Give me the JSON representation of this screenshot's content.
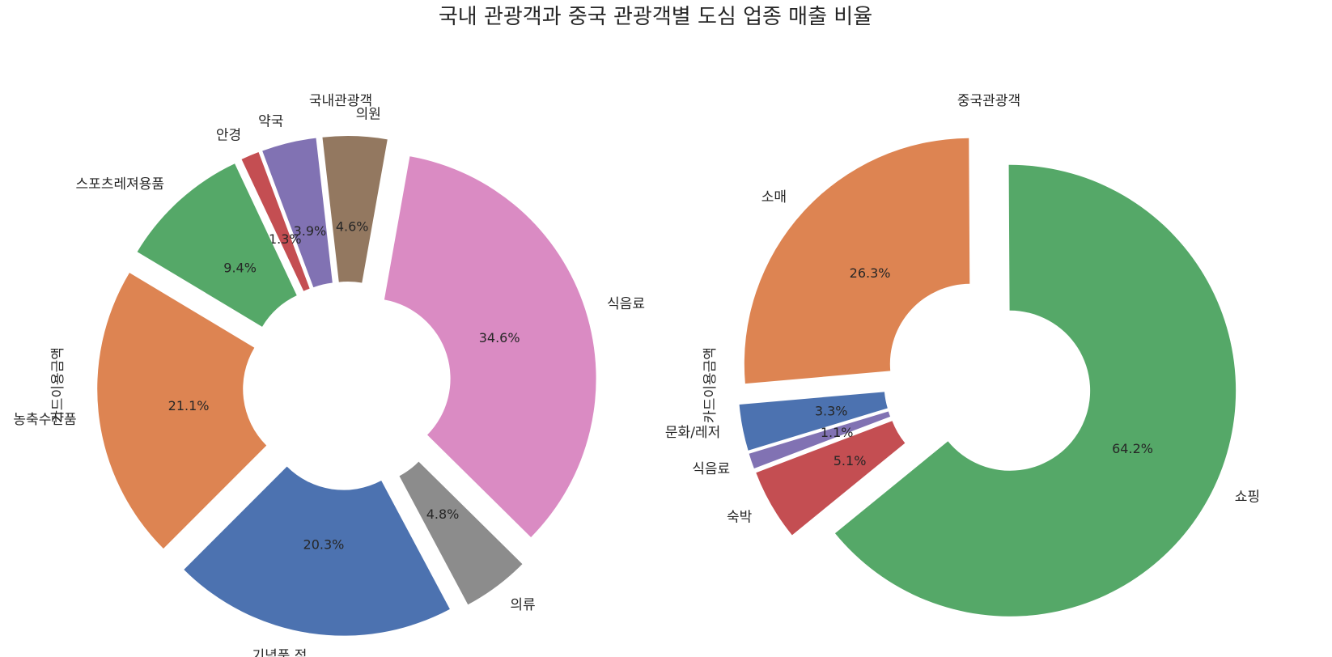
{
  "figure": {
    "title": "국내 관광객과 중국 관광객별 도심 업종 매출 비율"
  },
  "chart_data": [
    {
      "type": "pie",
      "title": "국내관광객",
      "ylabel": "카드이용금액",
      "donut": true,
      "start_angle_deg": 225,
      "direction": "counterclockwise",
      "slices": [
        {
          "label": "기념품 점",
          "value": 20.3,
          "pct_label": "20.3%",
          "color": "#4c72b0"
        },
        {
          "label": "의류",
          "value": 4.8,
          "pct_label": "4.8%",
          "color": "#8c8c8c"
        },
        {
          "label": "식음료",
          "value": 34.6,
          "pct_label": "34.6%",
          "color": "#da8bc3"
        },
        {
          "label": "의원",
          "value": 4.6,
          "pct_label": "4.6%",
          "color": "#937860"
        },
        {
          "label": "약국",
          "value": 3.9,
          "pct_label": "3.9%",
          "color": "#8172b3"
        },
        {
          "label": "안경",
          "value": 1.3,
          "pct_label": "1.3%",
          "color": "#c44e52"
        },
        {
          "label": "스포츠레져용품",
          "value": 9.4,
          "pct_label": "9.4%",
          "color": "#55a868"
        },
        {
          "label": "농축수산품",
          "value": 21.1,
          "pct_label": "21.1%",
          "color": "#dd8452"
        }
      ]
    },
    {
      "type": "pie",
      "title": "중국관광객",
      "ylabel": "카드이용금액",
      "donut": true,
      "start_angle_deg": 185,
      "direction": "counterclockwise",
      "slices": [
        {
          "label": "문화/레저",
          "value": 3.3,
          "pct_label": "3.3%",
          "color": "#4c72b0"
        },
        {
          "label": "식음료",
          "value": 1.1,
          "pct_label": "1.1%",
          "color": "#8172b3"
        },
        {
          "label": "숙박",
          "value": 5.1,
          "pct_label": "5.1%",
          "color": "#c44e52"
        },
        {
          "label": "쇼핑",
          "value": 64.2,
          "pct_label": "64.2%",
          "color": "#55a868"
        },
        {
          "label": "소매",
          "value": 26.3,
          "pct_label": "26.3%",
          "color": "#dd8452"
        }
      ]
    }
  ]
}
